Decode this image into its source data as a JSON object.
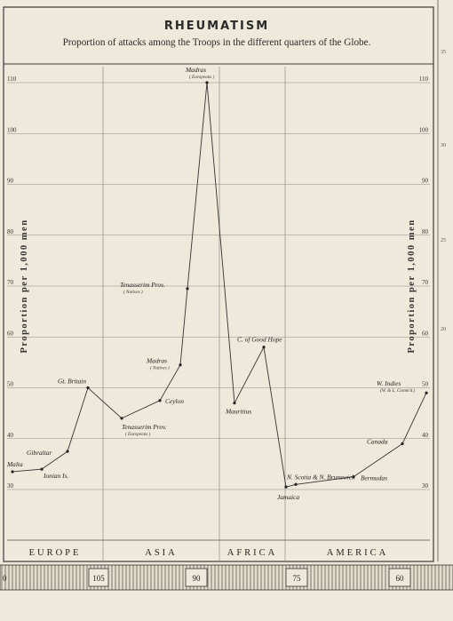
{
  "chart_data": {
    "type": "line",
    "title": "RHEUMATISM",
    "subtitle": "Proportion of attacks among the Troops in the different quarters of the Globe.",
    "ylabel": "Proportion per 1,000 men",
    "ylim": [
      25,
      112
    ],
    "yticks": [
      30,
      40,
      50,
      60,
      70,
      80,
      90,
      100,
      110
    ],
    "grid": true,
    "regions": [
      {
        "label": "EUROPE",
        "from": 0,
        "to": 4
      },
      {
        "label": "ASIA",
        "from": 4,
        "to": 8
      },
      {
        "label": "AFRICA",
        "from": 8,
        "to": 10
      },
      {
        "label": "AMERICA",
        "from": 10,
        "to": 15
      }
    ],
    "points": [
      {
        "label": "Malta",
        "sub": "",
        "value": 33.5
      },
      {
        "label": "Ionian Is.",
        "sub": "",
        "value": 34
      },
      {
        "label": "Gibraltar",
        "sub": "",
        "value": 37.5
      },
      {
        "label": "Gt. Britain",
        "sub": "",
        "value": 50
      },
      {
        "label": "Tenasserim Prov.",
        "sub": "( Europeans )",
        "value": 44
      },
      {
        "label": "Ceylon",
        "sub": "",
        "value": 47.5
      },
      {
        "label": "Madras",
        "sub": "( Natives )",
        "value": 54.5
      },
      {
        "label": "Tenasserim Prov.",
        "sub": "( Natives )",
        "value": 69.5
      },
      {
        "label": "Madras",
        "sub": "( Europeans )",
        "value": 110
      },
      {
        "label": "Mauritius",
        "sub": "",
        "value": 47
      },
      {
        "label": "C. of Good Hope",
        "sub": "",
        "value": 58
      },
      {
        "label": "Jamaica",
        "sub": "",
        "value": 30.5
      },
      {
        "label": "N. Scotia & N. Brunswick",
        "sub": "",
        "value": 31
      },
      {
        "label": "Bermudas",
        "sub": "",
        "value": 32.5
      },
      {
        "label": "Canada",
        "sub": "",
        "value": 39
      },
      {
        "label": "W. Indies",
        "sub": "(W. & L. Comm'd.)",
        "value": 49
      }
    ]
  },
  "scale_bar": {
    "labels": [
      "105",
      "90",
      "75",
      "60"
    ]
  },
  "margin_numbers": [
    "35",
    "30",
    "25",
    "20"
  ]
}
